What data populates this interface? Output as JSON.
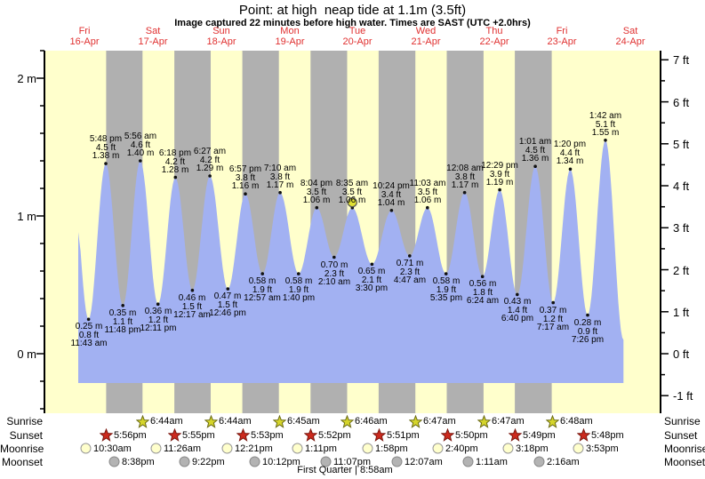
{
  "title": "Point: at high  neap tide at 1.1m (3.5ft)",
  "subtitle": "Image captured 22 minutes before high water. Times are SAST (UTC +2.0hrs)",
  "days": [
    {
      "dow": "Fri",
      "date": "16-Apr"
    },
    {
      "dow": "Sat",
      "date": "17-Apr"
    },
    {
      "dow": "Sun",
      "date": "18-Apr"
    },
    {
      "dow": "Mon",
      "date": "19-Apr"
    },
    {
      "dow": "Tue",
      "date": "20-Apr"
    },
    {
      "dow": "Wed",
      "date": "21-Apr"
    },
    {
      "dow": "Thu",
      "date": "22-Apr"
    },
    {
      "dow": "Fri",
      "date": "23-Apr"
    },
    {
      "dow": "Sat",
      "date": "24-Apr"
    }
  ],
  "chart_data": {
    "type": "area",
    "title": "Point: at high  neap tide at 1.1m (3.5ft)",
    "ylabel_left": "m",
    "ylabel_right": "ft",
    "left_axis": {
      "unit": "m",
      "major": [
        2,
        1,
        0
      ],
      "minor_step": 0.2,
      "range": [
        -0.4,
        2.2
      ]
    },
    "right_axis": {
      "unit": "ft",
      "major": [
        7,
        6,
        5,
        4,
        3,
        2,
        1,
        0,
        -1
      ],
      "minor_step": 0.5
    },
    "events": [
      {
        "day": 16,
        "time": "11:43 am",
        "type": "low",
        "height_m": 0.25,
        "height_ft": 0.8
      },
      {
        "day": 16,
        "time": "5:48 pm",
        "type": "high",
        "height_m": 1.38,
        "height_ft": 4.5
      },
      {
        "day": 16,
        "time": "11:48 pm",
        "type": "low",
        "height_m": 0.35,
        "height_ft": 1.1
      },
      {
        "day": 17,
        "time": "5:56 am",
        "type": "high",
        "height_m": 1.4,
        "height_ft": 4.6
      },
      {
        "day": 17,
        "time": "12:11 pm",
        "type": "low",
        "height_m": 0.36,
        "height_ft": 1.2
      },
      {
        "day": 17,
        "time": "6:18 pm",
        "type": "high",
        "height_m": 1.28,
        "height_ft": 4.2
      },
      {
        "day": 18,
        "time": "12:17 am",
        "type": "low",
        "height_m": 0.46,
        "height_ft": 1.5
      },
      {
        "day": 18,
        "time": "6:27 am",
        "type": "high",
        "height_m": 1.29,
        "height_ft": 4.2
      },
      {
        "day": 18,
        "time": "12:46 pm",
        "type": "low",
        "height_m": 0.47,
        "height_ft": 1.5
      },
      {
        "day": 18,
        "time": "6:57 pm",
        "type": "high",
        "height_m": 1.16,
        "height_ft": 3.8
      },
      {
        "day": 19,
        "time": "12:57 am",
        "type": "low",
        "height_m": 0.58,
        "height_ft": 1.9
      },
      {
        "day": 19,
        "time": "7:10 am",
        "type": "high",
        "height_m": 1.17,
        "height_ft": 3.8
      },
      {
        "day": 19,
        "time": "1:40 pm",
        "type": "low",
        "height_m": 0.58,
        "height_ft": 1.9
      },
      {
        "day": 19,
        "time": "8:04 pm",
        "type": "high",
        "height_m": 1.06,
        "height_ft": 3.5
      },
      {
        "day": 20,
        "time": "2:10 am",
        "type": "low",
        "height_m": 0.7,
        "height_ft": 2.3
      },
      {
        "day": 20,
        "time": "8:35 am",
        "type": "high",
        "height_m": 1.06,
        "height_ft": 3.5,
        "capture_marker": true
      },
      {
        "day": 20,
        "time": "3:30 pm",
        "type": "low",
        "height_m": 0.65,
        "height_ft": 2.1
      },
      {
        "day": 20,
        "time": "10:24 pm",
        "type": "high",
        "height_m": 1.04,
        "height_ft": 3.4
      },
      {
        "day": 21,
        "time": "4:47 am",
        "type": "low",
        "height_m": 0.71,
        "height_ft": 2.3
      },
      {
        "day": 21,
        "time": "11:03 am",
        "type": "high",
        "height_m": 1.06,
        "height_ft": 3.5
      },
      {
        "day": 21,
        "time": "5:35 pm",
        "type": "low",
        "height_m": 0.58,
        "height_ft": 1.9
      },
      {
        "day": 22,
        "time": "12:08 am",
        "type": "high",
        "height_m": 1.17,
        "height_ft": 3.8
      },
      {
        "day": 22,
        "time": "6:24 am",
        "type": "low",
        "height_m": 0.56,
        "height_ft": 1.8
      },
      {
        "day": 22,
        "time": "12:29 pm",
        "type": "high",
        "height_m": 1.19,
        "height_ft": 3.9
      },
      {
        "day": 22,
        "time": "6:40 pm",
        "type": "low",
        "height_m": 0.43,
        "height_ft": 1.4
      },
      {
        "day": 23,
        "time": "1:01 am",
        "type": "high",
        "height_m": 1.36,
        "height_ft": 4.5
      },
      {
        "day": 23,
        "time": "7:17 am",
        "type": "low",
        "height_m": 0.37,
        "height_ft": 1.2
      },
      {
        "day": 23,
        "time": "1:20 pm",
        "type": "high",
        "height_m": 1.34,
        "height_ft": 4.4
      },
      {
        "day": 23,
        "time": "7:26 pm",
        "type": "low",
        "height_m": 0.28,
        "height_ft": 0.9
      },
      {
        "day": 24,
        "time": "1:42 am",
        "type": "high",
        "height_m": 1.55,
        "height_ft": 5.1
      }
    ]
  },
  "astro": {
    "rows": [
      {
        "key": "sunrise",
        "label": "Sunrise",
        "icon": "sunrise-star",
        "entries": [
          {
            "day": 17,
            "time": "6:44am"
          },
          {
            "day": 18,
            "time": "6:44am"
          },
          {
            "day": 19,
            "time": "6:45am"
          },
          {
            "day": 20,
            "time": "6:46am"
          },
          {
            "day": 21,
            "time": "6:47am"
          },
          {
            "day": 22,
            "time": "6:47am"
          },
          {
            "day": 23,
            "time": "6:48am"
          }
        ]
      },
      {
        "key": "sunset",
        "label": "Sunset",
        "icon": "sunset-star",
        "entries": [
          {
            "day": 16,
            "time": "5:56pm"
          },
          {
            "day": 17,
            "time": "5:55pm"
          },
          {
            "day": 18,
            "time": "5:53pm"
          },
          {
            "day": 19,
            "time": "5:52pm"
          },
          {
            "day": 20,
            "time": "5:51pm"
          },
          {
            "day": 21,
            "time": "5:50pm"
          },
          {
            "day": 22,
            "time": "5:49pm"
          },
          {
            "day": 23,
            "time": "5:48pm"
          }
        ]
      },
      {
        "key": "moonrise",
        "label": "Moonrise",
        "icon": "moonrise-circle",
        "entries": [
          {
            "day": 16,
            "time": "10:30am"
          },
          {
            "day": 17,
            "time": "11:26am"
          },
          {
            "day": 18,
            "time": "12:21pm"
          },
          {
            "day": 19,
            "time": "1:11pm"
          },
          {
            "day": 20,
            "time": "1:58pm"
          },
          {
            "day": 21,
            "time": "2:40pm"
          },
          {
            "day": 22,
            "time": "3:18pm"
          },
          {
            "day": 23,
            "time": "3:53pm"
          }
        ]
      },
      {
        "key": "moonset",
        "label": "Moonset",
        "icon": "moonset-circle",
        "entries": [
          {
            "day": 16,
            "time": "8:38pm"
          },
          {
            "day": 17,
            "time": "9:22pm"
          },
          {
            "day": 18,
            "time": "10:12pm"
          },
          {
            "day": 19,
            "time": "11:07pm"
          },
          {
            "day": 21,
            "time": "12:07am"
          },
          {
            "day": 22,
            "time": "1:11am"
          },
          {
            "day": 23,
            "time": "2:16am"
          }
        ]
      }
    ],
    "moon_phase": "First Quarter | 8:58am"
  },
  "colors": {
    "day_bg": "#ffffcc",
    "night_band": "#b0b0b0",
    "tide_fill": "#a2b1f2",
    "day_label": "#e03030",
    "axis": "#000000",
    "sunrise_star": "#d5d52b",
    "sunrise_star_stroke": "#6b6b15",
    "sunset_star": "#cc2a1e",
    "sunset_star_stroke": "#7a150d",
    "moonrise_circle": "#ffffcc",
    "moonrise_circle_stroke": "#999999",
    "moonset_circle": "#b3b3b3",
    "moonset_circle_stroke": "#8a8a8a",
    "capture_marker": "#e0e033",
    "capture_marker_stroke": "#555555"
  }
}
